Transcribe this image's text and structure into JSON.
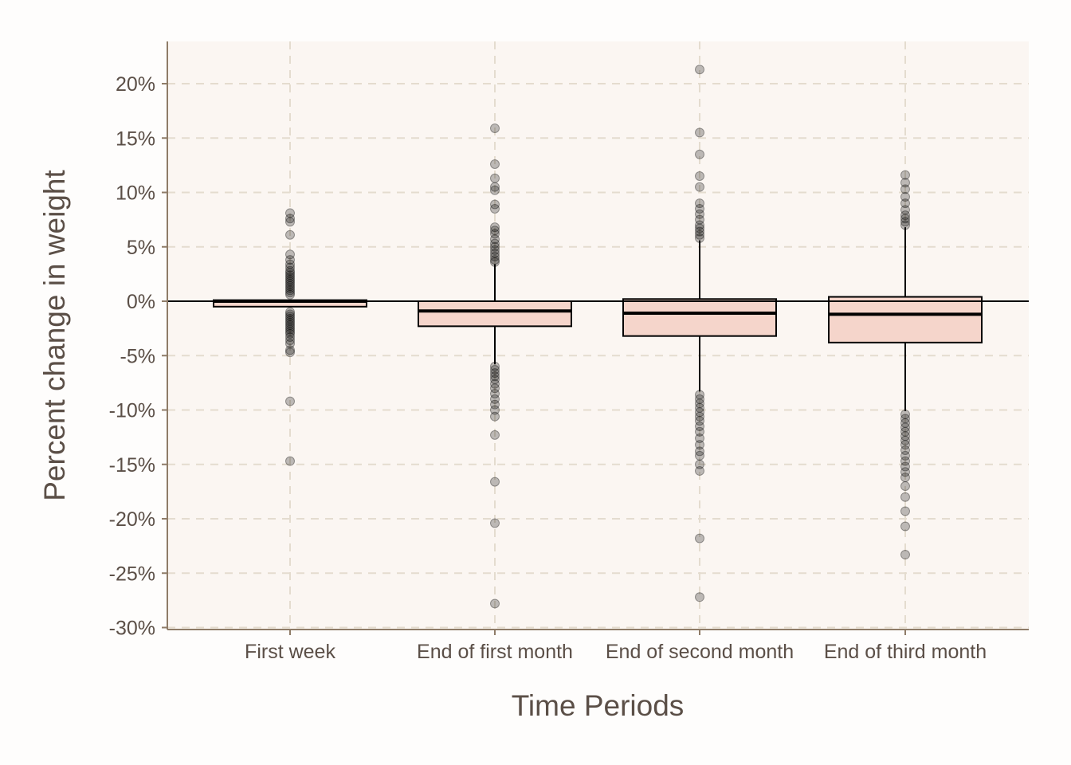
{
  "chart_data": {
    "type": "box",
    "title": "",
    "xlabel": "Time Periods",
    "ylabel": "Percent change in weight",
    "categories": [
      "First week",
      "End of first month",
      "End of second month",
      "End of third month"
    ],
    "ylim": [
      -30,
      24
    ],
    "yticks": [
      20,
      15,
      10,
      5,
      0,
      -5,
      -10,
      -15,
      -20,
      -25,
      -30
    ],
    "ytick_labels": [
      "20%",
      "15%",
      "10%",
      "5%",
      "0%",
      "-5%",
      "-10%",
      "-15%",
      "-20%",
      "-25%",
      "-30%"
    ],
    "reference_line_y": 0,
    "grid": true,
    "boxes": [
      {
        "category": "First week",
        "q1": -0.5,
        "median": 0.0,
        "q3": 0.1,
        "whisker_low": -0.5,
        "whisker_high": 0.1,
        "outliers": [
          8.1,
          7.6,
          7.3,
          6.1,
          4.3,
          3.8,
          3.4,
          3.1,
          2.8,
          2.6,
          2.4,
          2.2,
          2.0,
          1.8,
          1.6,
          1.4,
          1.2,
          1.0,
          0.8,
          0.6,
          -1.0,
          -1.2,
          -1.4,
          -1.6,
          -1.8,
          -2.0,
          -2.2,
          -2.4,
          -2.6,
          -2.8,
          -3.0,
          -3.3,
          -3.6,
          -3.9,
          -4.5,
          -4.7,
          -9.2,
          -14.7
        ]
      },
      {
        "category": "End of first month",
        "q1": -2.3,
        "median": -0.9,
        "q3": 0.0,
        "whisker_low": -5.8,
        "whisker_high": 3.4,
        "outliers": [
          15.9,
          12.6,
          11.3,
          10.5,
          10.2,
          8.9,
          8.5,
          6.8,
          6.5,
          6.2,
          5.7,
          5.3,
          5.0,
          4.7,
          4.4,
          4.1,
          3.8,
          3.6,
          -6.0,
          -6.3,
          -6.6,
          -6.9,
          -7.2,
          -7.6,
          -8.0,
          -8.5,
          -9.0,
          -9.5,
          -10.0,
          -10.6,
          -12.3,
          -16.6,
          -20.4,
          -27.8
        ]
      },
      {
        "category": "End of second month",
        "q1": -3.2,
        "median": -1.1,
        "q3": 0.2,
        "whisker_low": -8.3,
        "whisker_high": 5.6,
        "outliers": [
          21.3,
          15.5,
          13.5,
          11.5,
          10.5,
          9.0,
          8.5,
          8.0,
          7.5,
          7.0,
          6.7,
          6.4,
          6.1,
          5.8,
          -8.6,
          -9.0,
          -9.4,
          -9.8,
          -10.2,
          -10.6,
          -11.0,
          -11.5,
          -12.0,
          -12.6,
          -13.2,
          -13.8,
          -14.2,
          -15.0,
          -15.6,
          -21.8,
          -27.2
        ]
      },
      {
        "category": "End of third month",
        "q1": -3.8,
        "median": -1.2,
        "q3": 0.4,
        "whisker_low": -10.1,
        "whisker_high": 6.8,
        "outliers": [
          11.6,
          10.9,
          10.3,
          9.6,
          9.0,
          8.4,
          7.9,
          7.6,
          7.3,
          7.0,
          -10.4,
          -10.8,
          -11.2,
          -11.6,
          -12.0,
          -12.4,
          -12.8,
          -13.2,
          -13.7,
          -14.2,
          -14.7,
          -15.2,
          -15.7,
          -16.2,
          -17.0,
          -18.0,
          -19.3,
          -20.7,
          -23.3
        ]
      }
    ],
    "colors": {
      "panel_background": "#fbf6f2",
      "box_fill": "#f5d5cb",
      "box_stroke": "#000000",
      "grid": "#e4dccf",
      "axis": "#8f7c68",
      "text": "#5b4f47",
      "outlier": "#000000"
    }
  }
}
